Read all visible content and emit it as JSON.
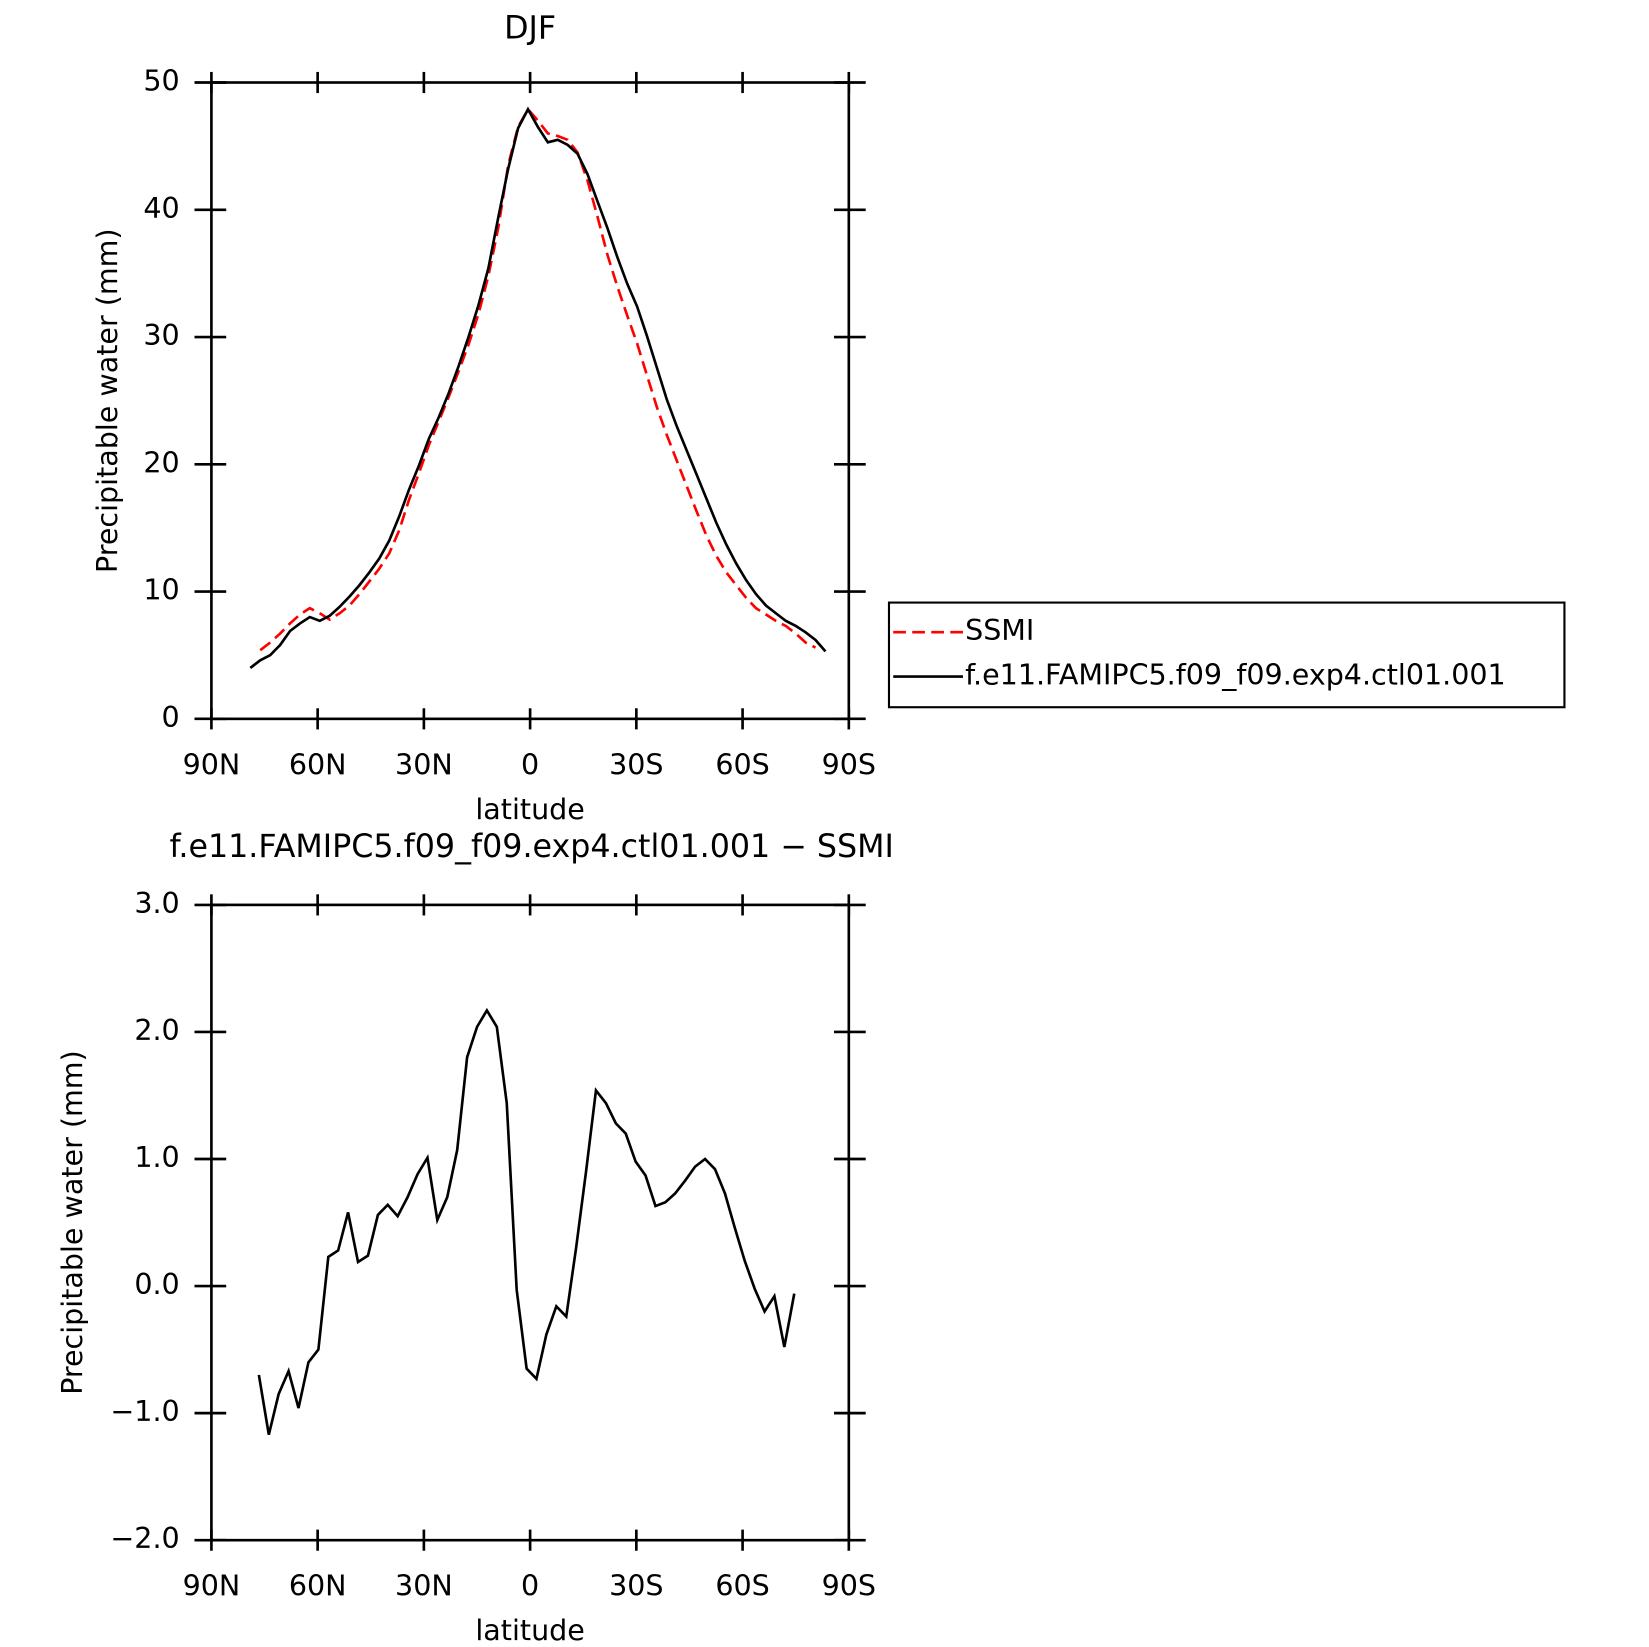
{
  "chart_data": [
    {
      "type": "line",
      "title": "DJF",
      "xlabel": "latitude",
      "ylabel": "Precipitable water (mm)",
      "x": [
        79.0,
        76.2,
        73.4,
        70.6,
        67.8,
        65.0,
        62.2,
        59.4,
        56.6,
        53.8,
        51.0,
        48.2,
        45.4,
        42.6,
        39.8,
        37.0,
        34.2,
        31.4,
        28.6,
        25.8,
        23.0,
        20.2,
        17.4,
        14.6,
        11.8,
        9.0,
        6.2,
        3.4,
        0.6,
        -2.2,
        -5.0,
        -7.8,
        -10.6,
        -13.4,
        -16.2,
        -19.0,
        -21.8,
        -24.6,
        -27.4,
        -30.2,
        -33.0,
        -35.8,
        -38.6,
        -41.4,
        -44.2,
        -47.0,
        -49.8,
        -52.6,
        -55.4,
        -58.2,
        -61.0,
        -63.8,
        -66.6,
        -69.4,
        -72.2,
        -75.0,
        -77.8,
        -80.6,
        -83.4
      ],
      "series": [
        {
          "name": "SSMI",
          "color": "#ff0000",
          "linestyle": "dashed",
          "values": [
            null,
            5.4,
            6.0,
            6.7,
            7.5,
            8.2,
            8.7,
            8.3,
            7.8,
            8.3,
            8.9,
            9.8,
            10.8,
            11.8,
            13.0,
            14.8,
            17.2,
            19.3,
            21.5,
            23.4,
            25.3,
            27.3,
            29.4,
            31.8,
            34.8,
            38.6,
            43.5,
            46.5,
            47.9,
            47.0,
            46.0,
            45.8,
            45.5,
            44.5,
            42.3,
            39.5,
            36.5,
            34.0,
            31.7,
            29.5,
            27.0,
            24.5,
            22.3,
            20.3,
            18.3,
            16.3,
            14.4,
            12.8,
            11.5,
            10.5,
            9.5,
            8.7,
            8.2,
            7.7,
            7.3,
            6.7,
            6.0,
            5.6,
            null
          ]
        },
        {
          "name": "f.e11.FAMIPC5.f09_f09.exp4.ctl01.001",
          "color": "#000000",
          "linestyle": "solid",
          "values": [
            4.0,
            4.6,
            5.0,
            5.8,
            6.9,
            7.5,
            8.0,
            7.7,
            8.1,
            8.8,
            9.6,
            10.5,
            11.5,
            12.6,
            14.0,
            15.9,
            18.0,
            19.9,
            22.0,
            23.7,
            25.6,
            27.7,
            30.0,
            32.5,
            35.4,
            39.4,
            43.2,
            46.4,
            47.9,
            46.5,
            45.3,
            45.5,
            45.1,
            44.4,
            42.8,
            40.7,
            38.6,
            36.3,
            34.2,
            32.4,
            30.1,
            27.6,
            25.1,
            23.0,
            21.1,
            19.2,
            17.3,
            15.4,
            13.7,
            12.2,
            10.9,
            9.8,
            8.9,
            8.3,
            7.7,
            7.3,
            6.8,
            6.2,
            5.3
          ]
        }
      ],
      "xlim": [
        90,
        -90
      ],
      "xticks": [
        {
          "value": 90,
          "label": "90N"
        },
        {
          "value": 60,
          "label": "60N"
        },
        {
          "value": 30,
          "label": "30N"
        },
        0,
        {
          "value": -30,
          "label": "30S"
        },
        {
          "value": -60,
          "label": "60S"
        },
        {
          "value": -90,
          "label": "90S"
        }
      ],
      "ylim": [
        0,
        50
      ],
      "yticks": [
        0,
        10,
        20,
        30,
        40,
        50
      ],
      "legend": "right"
    },
    {
      "type": "line",
      "title": "f.e11.FAMIPC5.f09_f09.exp4.ctl01.001 − SSMI",
      "xlabel": "latitude",
      "ylabel": "Precipitable water (mm)",
      "x": [
        76.6,
        73.8,
        71.0,
        68.2,
        65.4,
        62.6,
        59.8,
        57.0,
        54.2,
        51.4,
        48.6,
        45.8,
        43.0,
        40.2,
        37.4,
        34.6,
        31.8,
        29.0,
        26.2,
        23.4,
        20.6,
        17.8,
        15.0,
        12.2,
        9.4,
        6.6,
        3.8,
        1.0,
        -1.8,
        -4.6,
        -7.4,
        -10.2,
        -13.0,
        -15.8,
        -18.6,
        -21.4,
        -24.2,
        -27.0,
        -29.8,
        -32.6,
        -35.4,
        -38.2,
        -41.0,
        -43.8,
        -46.6,
        -49.4,
        -52.2,
        -55.0,
        -57.8,
        -60.6,
        -63.4,
        -66.2,
        -69.0,
        -71.8,
        -74.6
      ],
      "series": [
        {
          "color": "#000000",
          "linestyle": "solid",
          "values": [
            -0.7,
            -1.17,
            -0.85,
            -0.67,
            -0.96,
            -0.6,
            -0.5,
            0.23,
            0.28,
            0.58,
            0.19,
            0.24,
            0.56,
            0.64,
            0.55,
            0.7,
            0.88,
            1.01,
            0.52,
            0.7,
            1.07,
            1.8,
            2.04,
            2.17,
            2.04,
            1.44,
            -0.03,
            -0.65,
            -0.73,
            -0.38,
            -0.16,
            -0.24,
            0.3,
            0.9,
            1.54,
            1.44,
            1.28,
            1.2,
            0.98,
            0.87,
            0.63,
            0.66,
            0.73,
            0.83,
            0.94,
            1.0,
            0.92,
            0.73,
            0.46,
            0.2,
            -0.02,
            -0.2,
            -0.08,
            -0.48,
            -0.06
          ]
        }
      ],
      "xlim": [
        90,
        -90
      ],
      "xticks": [
        {
          "value": 90,
          "label": "90N"
        },
        {
          "value": 60,
          "label": "60N"
        },
        {
          "value": 30,
          "label": "30N"
        },
        0,
        {
          "value": -30,
          "label": "30S"
        },
        {
          "value": -60,
          "label": "60S"
        },
        {
          "value": -90,
          "label": "90S"
        }
      ],
      "ylim": [
        -2,
        3
      ],
      "yticks": [
        {
          "value": -2,
          "label": "−2.0"
        },
        {
          "value": -1,
          "label": "−1.0"
        },
        {
          "value": 0,
          "label": "0.0"
        },
        {
          "value": 1,
          "label": "1.0"
        },
        {
          "value": 2,
          "label": "2.0"
        },
        {
          "value": 3,
          "label": "3.0"
        }
      ]
    }
  ]
}
